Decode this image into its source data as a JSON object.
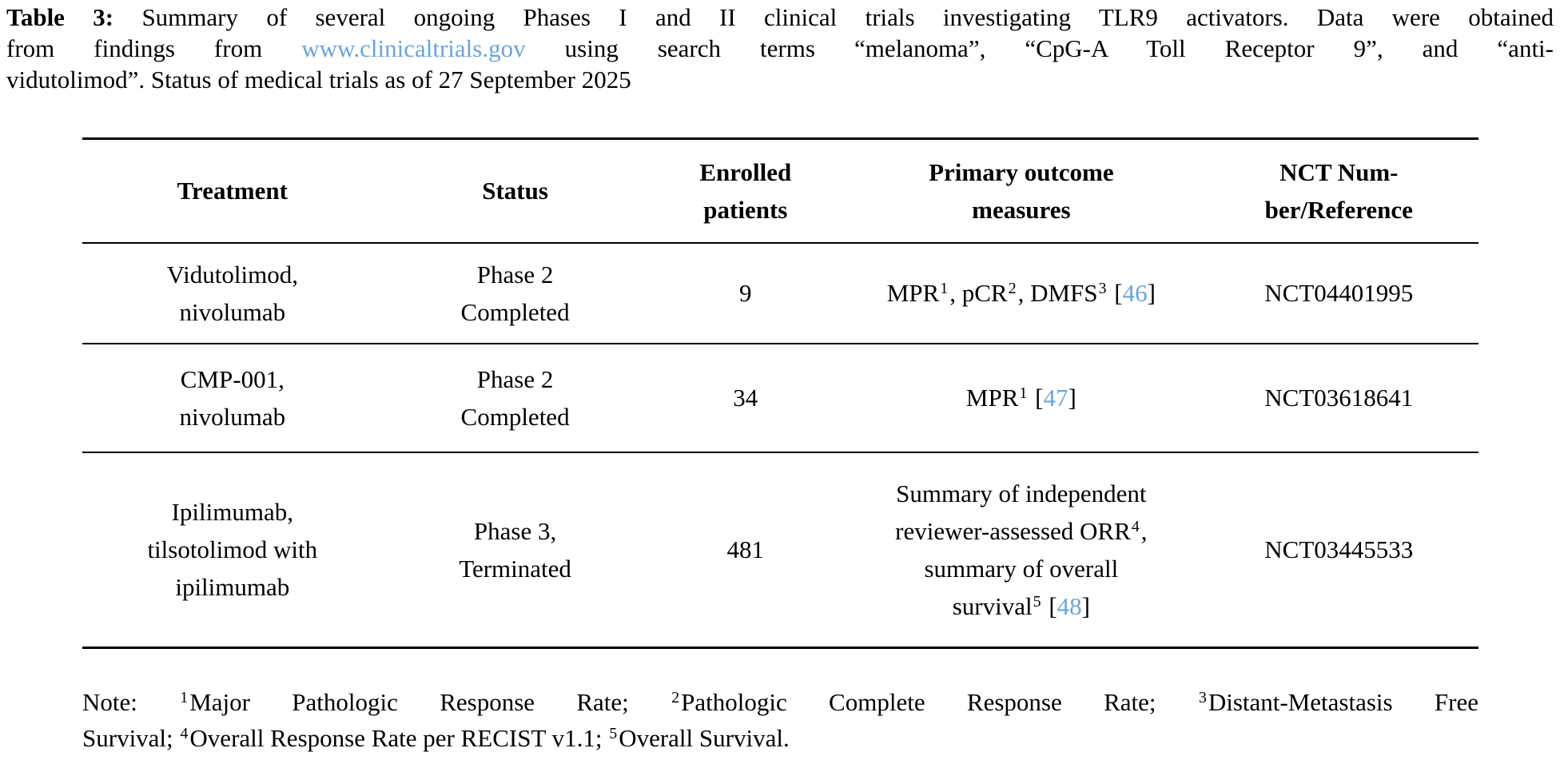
{
  "colors": {
    "link_blue": "#6aa5da",
    "text": "#000000",
    "rule": "#000000"
  },
  "caption": {
    "lines": [
      {
        "justify": true,
        "segments": [
          {
            "b": "Table 3:"
          },
          {
            "t": " Summary of several ongoing Phases I and II clinical trials investigating TLR9 activators. Data were obtained"
          }
        ]
      },
      {
        "justify": true,
        "segments": [
          {
            "t": "from findings from "
          },
          {
            "link": "www.clinicaltrials.gov"
          },
          {
            "t": " using search terms “melanoma”, “CpG-A Toll Receptor 9”, and “anti-"
          }
        ]
      },
      {
        "justify": false,
        "segments": [
          {
            "t": "vidutolimod”. Status of medical trials as of 27 September 2025"
          }
        ]
      }
    ]
  },
  "table": {
    "headers": [
      {
        "id": "treatment",
        "lines": [
          "Treatment"
        ]
      },
      {
        "id": "status",
        "lines": [
          "Status"
        ]
      },
      {
        "id": "enrolled-patients",
        "lines": [
          "Enrolled",
          "patients"
        ]
      },
      {
        "id": "primary-outcome-measures",
        "lines": [
          "Primary outcome",
          "measures"
        ]
      },
      {
        "id": "nct-number-reference",
        "lines": [
          "NCT Num-",
          "ber/Reference"
        ]
      }
    ],
    "rows": [
      {
        "treatment": [
          "Vidutolimod,",
          "nivolumab"
        ],
        "status": [
          "Phase 2",
          "Completed"
        ],
        "enrolled": "9",
        "outcome": [
          {
            "t": "MPR"
          },
          {
            "sup": "1"
          },
          {
            "t": ", pCR"
          },
          {
            "sup": "2"
          },
          {
            "t": ", DMFS"
          },
          {
            "sup": "3"
          },
          {
            "t": " ["
          },
          {
            "cite": "46"
          },
          {
            "t": "]"
          }
        ],
        "nct": "NCT04401995"
      },
      {
        "treatment": [
          "CMP-001,",
          "nivolumab"
        ],
        "status": [
          "Phase 2",
          "Completed"
        ],
        "enrolled": "34",
        "outcome": [
          {
            "t": "MPR"
          },
          {
            "sup": "1"
          },
          {
            "t": " ["
          },
          {
            "cite": "47"
          },
          {
            "t": "]"
          }
        ],
        "nct": "NCT03618641"
      },
      {
        "treatment": [
          "Ipilimumab,",
          "tilsotolimod with",
          "ipilimumab"
        ],
        "status": [
          "Phase 3,",
          "Terminated"
        ],
        "enrolled": "481",
        "outcome": [
          {
            "t": "Summary of independent"
          },
          {
            "br": true
          },
          {
            "t": "reviewer-assessed ORR"
          },
          {
            "sup": "4"
          },
          {
            "t": ","
          },
          {
            "br": true
          },
          {
            "t": "summary of overall"
          },
          {
            "br": true
          },
          {
            "t": "survival"
          },
          {
            "sup": "5"
          },
          {
            "t": " ["
          },
          {
            "cite": "48"
          },
          {
            "t": "]"
          }
        ],
        "nct": "NCT03445533"
      }
    ]
  },
  "note": {
    "lines": [
      {
        "justify": true,
        "segments": [
          {
            "t": "Note: "
          },
          {
            "sup": "1"
          },
          {
            "t": "Major Pathologic Response Rate; "
          },
          {
            "sup": "2"
          },
          {
            "t": "Pathologic Complete Response Rate; "
          },
          {
            "sup": "3"
          },
          {
            "t": "Distant-Metastasis Free"
          }
        ]
      },
      {
        "justify": false,
        "segments": [
          {
            "t": "Survival; "
          },
          {
            "sup": "4"
          },
          {
            "t": "Overall Response Rate per RECIST v1.1; "
          },
          {
            "sup": "5"
          },
          {
            "t": "Overall Survival."
          }
        ]
      }
    ]
  }
}
